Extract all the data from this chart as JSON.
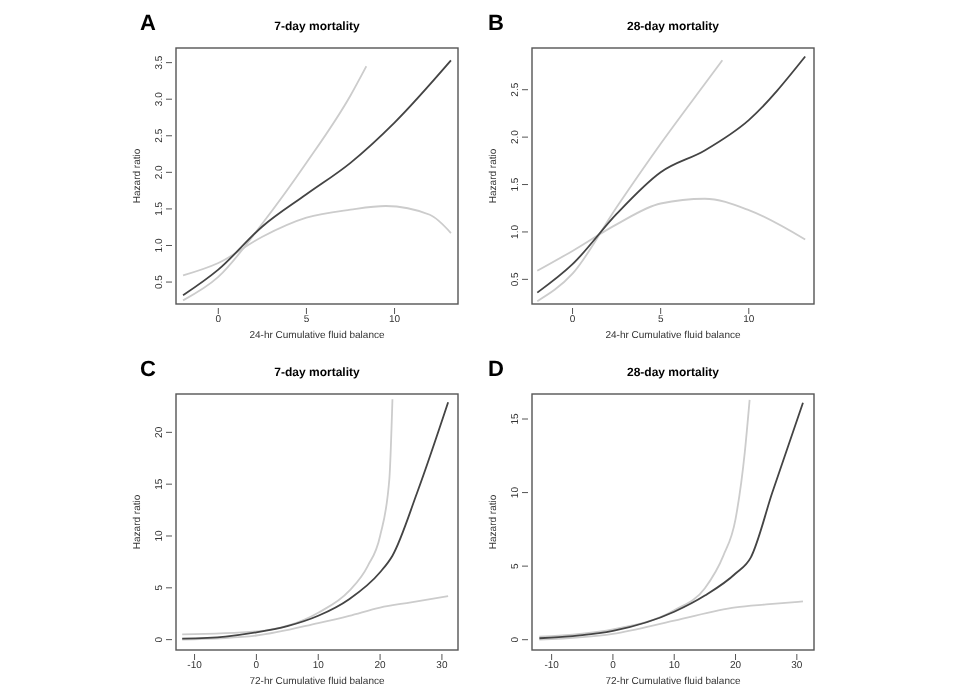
{
  "chart_data": [
    {
      "type": "line",
      "title": "7-day mortality",
      "xlabel": "24-hr Cumulative fluid balance",
      "ylabel": "Hazard ratio",
      "annotations": [
        "A"
      ],
      "xlim": [
        -2.4,
        13.6
      ],
      "ylim": [
        0.2,
        3.7
      ],
      "xticks": [
        0,
        5,
        10
      ],
      "yticks": [
        {
          "value": 0.5,
          "label": "0.5"
        },
        {
          "value": 1,
          "label": "1.0"
        },
        {
          "value": 1.5,
          "label": "1.5"
        },
        {
          "value": 2,
          "label": "2.0"
        },
        {
          "value": 2.5,
          "label": "2.5"
        },
        {
          "value": 3,
          "label": "3.0"
        },
        {
          "value": 3.5,
          "label": "3.5"
        }
      ],
      "grid": false,
      "marker": "none",
      "series": [
        {
          "color": "#cccccc",
          "x": [
            -2,
            0,
            2.5,
            5,
            7.5,
            9.5,
            12,
            13.2
          ],
          "values": [
            0.59,
            0.76,
            1.12,
            1.38,
            1.49,
            1.54,
            1.42,
            1.17
          ]
        },
        {
          "color": "#cccccc",
          "x": [
            -2,
            0,
            2.5,
            5,
            7.5,
            8.4
          ],
          "values": [
            0.25,
            0.57,
            1.3,
            2.13,
            3.05,
            3.45
          ]
        },
        {
          "color": "#444444",
          "x": [
            -2,
            0,
            2.5,
            5,
            7.5,
            10,
            13.2
          ],
          "values": [
            0.32,
            0.67,
            1.26,
            1.7,
            2.13,
            2.68,
            3.53
          ]
        }
      ]
    },
    {
      "type": "line",
      "title": "28-day mortality",
      "xlabel": "24-hr Cumulative fluid balance",
      "ylabel": "Hazard ratio",
      "annotations": [
        "B"
      ],
      "xlim": [
        -2.3,
        13.7
      ],
      "ylim": [
        0.24,
        2.94
      ],
      "xticks": [
        0,
        5,
        10
      ],
      "yticks": [
        {
          "value": 0.5,
          "label": "0.5"
        },
        {
          "value": 1,
          "label": "1.0"
        },
        {
          "value": 1.5,
          "label": "1.5"
        },
        {
          "value": 2,
          "label": "2.0"
        },
        {
          "value": 2.5,
          "label": "2.5"
        }
      ],
      "grid": false,
      "marker": "none",
      "series": [
        {
          "color": "#cccccc",
          "x": [
            -2,
            0,
            2.5,
            5,
            7.5,
            10,
            13.2
          ],
          "values": [
            0.59,
            0.8,
            1.08,
            1.3,
            1.35,
            1.23,
            0.92
          ]
        },
        {
          "color": "#cccccc",
          "x": [
            -2,
            0,
            2.5,
            5,
            7.5,
            8.5
          ],
          "values": [
            0.27,
            0.56,
            1.26,
            1.93,
            2.56,
            2.81
          ]
        },
        {
          "color": "#444444",
          "x": [
            -2,
            0,
            2.5,
            5,
            7.5,
            10,
            13.2
          ],
          "values": [
            0.36,
            0.66,
            1.19,
            1.63,
            1.86,
            2.18,
            2.85
          ]
        }
      ]
    },
    {
      "type": "line",
      "title": "7-day mortality",
      "xlabel": "72-hr Cumulative fluid balance",
      "ylabel": "Hazard ratio",
      "annotations": [
        "C"
      ],
      "xlim": [
        -13,
        32.6
      ],
      "ylim": [
        -1,
        23.7
      ],
      "xticks": [
        -10,
        0,
        10,
        20,
        30
      ],
      "yticks": [
        0,
        5,
        10,
        15,
        20
      ],
      "grid": false,
      "marker": "none",
      "series": [
        {
          "color": "#cccccc",
          "x": [
            -12,
            0,
            10,
            15,
            20,
            25,
            31
          ],
          "values": [
            0,
            0.4,
            1.6,
            2.3,
            3.1,
            3.6,
            4.2
          ]
        },
        {
          "color": "#cccccc",
          "x": [
            -12,
            0,
            10,
            15,
            18,
            20,
            21.5,
            22
          ],
          "values": [
            0.5,
            0.8,
            2.6,
            4.7,
            7.1,
            10,
            15.5,
            23.2
          ]
        },
        {
          "color": "#444444",
          "x": [
            -12,
            -5,
            0,
            5,
            10,
            15,
            20,
            22,
            26,
            31
          ],
          "values": [
            0.1,
            0.3,
            0.7,
            1.3,
            2.3,
            3.9,
            6.5,
            8.1,
            14.2,
            22.9
          ]
        }
      ]
    },
    {
      "type": "line",
      "title": "28-day mortality",
      "xlabel": "72-hr Cumulative fluid balance",
      "ylabel": "Hazard ratio",
      "annotations": [
        "D"
      ],
      "xlim": [
        -13.2,
        32.8
      ],
      "ylim": [
        -0.7,
        16.7
      ],
      "xticks": [
        -10,
        0,
        10,
        20,
        30
      ],
      "yticks": [
        0,
        5,
        10,
        15
      ],
      "grid": false,
      "marker": "none",
      "series": [
        {
          "color": "#cccccc",
          "x": [
            -12,
            0,
            10,
            20,
            25,
            31
          ],
          "values": [
            0,
            0.4,
            1.3,
            2.2,
            2.4,
            2.6
          ]
        },
        {
          "color": "#cccccc",
          "x": [
            -12,
            0,
            10,
            15,
            18,
            20,
            21.5,
            22.3
          ],
          "values": [
            0.2,
            0.7,
            2,
            3.5,
            5.7,
            8.2,
            12.7,
            16.3
          ]
        },
        {
          "color": "#444444",
          "x": [
            -12,
            0,
            10,
            15,
            20,
            22.5,
            26,
            31
          ],
          "values": [
            0.1,
            0.6,
            1.9,
            3,
            4.5,
            5.6,
            10,
            16.1
          ]
        }
      ]
    }
  ]
}
